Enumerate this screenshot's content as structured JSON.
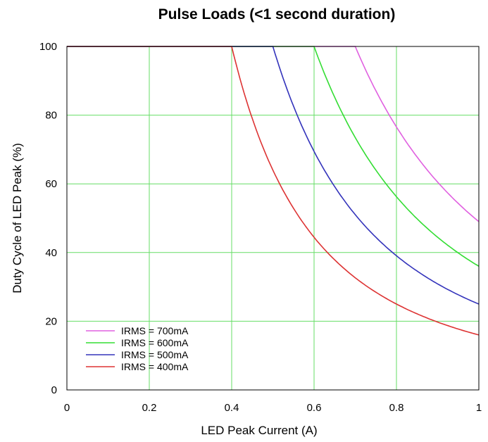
{
  "chart_data": {
    "type": "line",
    "title": "Pulse Loads (<1 second duration)",
    "xlabel": "LED Peak Current (A)",
    "ylabel": "Duty Cycle of LED Peak (%)",
    "xlim": [
      0,
      1
    ],
    "ylim": [
      0,
      100
    ],
    "xticks": [
      "0",
      "0.2",
      "0.4",
      "0.6",
      "0.8",
      "1"
    ],
    "yticks": [
      "0",
      "20",
      "40",
      "60",
      "80",
      "100"
    ],
    "grid": true,
    "grid_color": "#66dd66",
    "legend_position": "bottom-left",
    "series": [
      {
        "name": "IRMS = 700mA",
        "color": "#e060e0",
        "irms": 0.7
      },
      {
        "name": "IRMS = 600mA",
        "color": "#33dd33",
        "irms": 0.6
      },
      {
        "name": "IRMS = 500mA",
        "color": "#3333bb",
        "irms": 0.5
      },
      {
        "name": "IRMS = 400mA",
        "color": "#dd3333",
        "irms": 0.4
      }
    ]
  }
}
